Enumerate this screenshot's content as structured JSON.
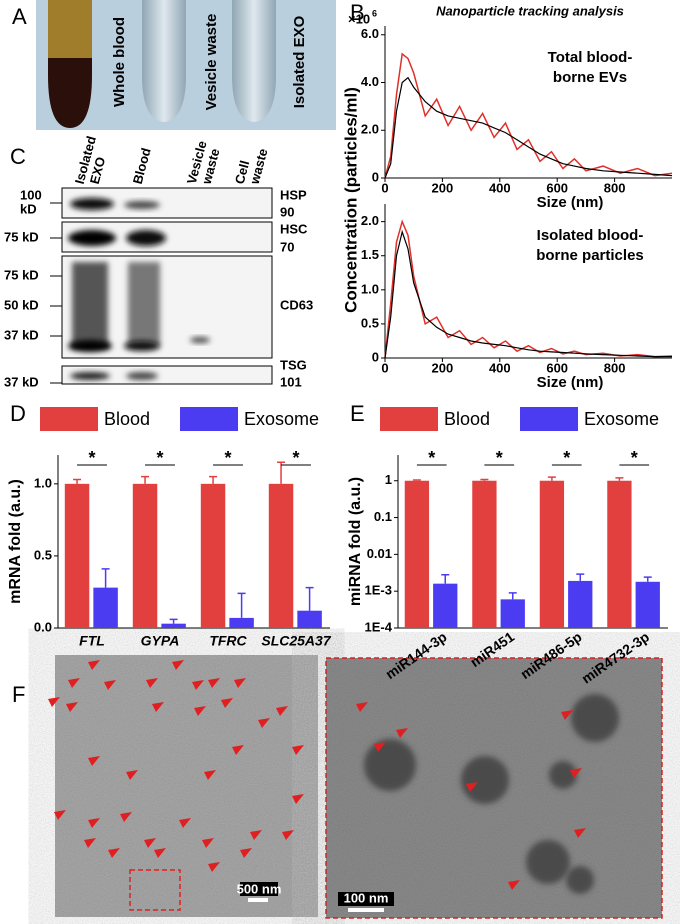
{
  "panel_a": {
    "letter": "A",
    "labels": [
      "Whole blood",
      "Vesicle waste",
      "Isolated EXO"
    ]
  },
  "panel_b": {
    "letter": "B",
    "title": "Nanoparticle tracking analysis",
    "y_label": "Concentration (particles/ml)",
    "multiplier": {
      "base": "×10",
      "exponent": "6"
    }
  },
  "panel_c": {
    "letter": "C",
    "columns": [
      [
        "Isolated",
        "EXO"
      ],
      [
        "Blood"
      ],
      [
        "Vesicle",
        "waste"
      ],
      [
        "Cell",
        "waste"
      ]
    ],
    "markers": [
      [
        "100",
        "kD"
      ],
      [
        "75 kD"
      ],
      [
        "75 kD"
      ],
      [
        "50 kD"
      ],
      [
        "37 kD"
      ],
      [
        "37 kD"
      ]
    ],
    "proteins": [
      [
        "HSP",
        "90"
      ],
      [
        "HSC",
        "70"
      ],
      [
        "CD63"
      ],
      [
        "TSG",
        "101"
      ]
    ]
  },
  "panel_f": {
    "letter": "F",
    "scale_bars": [
      "500 nm",
      "100 nm"
    ]
  },
  "chart_data": [
    {
      "type": "line",
      "annotation": [
        "Total blood-",
        "borne EVs"
      ],
      "x_label": "Size (nm)",
      "x": [
        0,
        20,
        40,
        60,
        80,
        100,
        140,
        180,
        220,
        260,
        300,
        340,
        380,
        420,
        460,
        500,
        540,
        580,
        620,
        660,
        700,
        760,
        820,
        880,
        940,
        1000
      ],
      "xlim": [
        0,
        1000
      ],
      "xticks": [
        0,
        200,
        400,
        600,
        800
      ],
      "ylim": [
        0,
        6.2
      ],
      "yticks": [
        0,
        {
          "value": 2,
          "label": "2.0"
        },
        {
          "value": 4,
          "label": "4.0"
        },
        {
          "value": 6,
          "label": "6.0"
        }
      ],
      "series": [
        {
          "color": "#e0302a",
          "values": [
            0,
            0.9,
            3.5,
            5.2,
            5.0,
            4.4,
            2.6,
            3.3,
            2.2,
            3.0,
            2.0,
            2.7,
            1.7,
            2.3,
            1.2,
            1.6,
            0.7,
            1.1,
            0.4,
            0.8,
            0.3,
            0.5,
            0.2,
            0.4,
            0.1,
            0.2
          ]
        },
        {
          "color": "#000000",
          "values": [
            0,
            0.6,
            2.8,
            4.0,
            4.2,
            3.8,
            3.2,
            2.8,
            2.6,
            2.5,
            2.4,
            2.3,
            2.1,
            1.9,
            1.6,
            1.3,
            1.0,
            0.8,
            0.6,
            0.5,
            0.4,
            0.3,
            0.25,
            0.2,
            0.15,
            0.1
          ]
        }
      ]
    },
    {
      "type": "line",
      "annotation": [
        "Isolated blood-",
        "borne particles"
      ],
      "x_label": "Size (nm)",
      "x": [
        0,
        20,
        40,
        60,
        80,
        100,
        140,
        180,
        220,
        260,
        300,
        340,
        380,
        420,
        460,
        500,
        540,
        580,
        620,
        660,
        700,
        760,
        820,
        880,
        940,
        1000
      ],
      "xlim": [
        0,
        1000
      ],
      "xticks": [
        0,
        200,
        400,
        600,
        800
      ],
      "ylim": [
        0,
        2.2
      ],
      "yticks": [
        0,
        0.5,
        {
          "value": 1,
          "label": "1.0"
        },
        1.5,
        {
          "value": 2,
          "label": "2.0"
        }
      ],
      "series": [
        {
          "color": "#e0302a",
          "values": [
            0,
            0.8,
            1.7,
            2.0,
            1.8,
            1.2,
            0.5,
            0.6,
            0.3,
            0.4,
            0.2,
            0.3,
            0.15,
            0.25,
            0.1,
            0.18,
            0.08,
            0.14,
            0.06,
            0.1,
            0.05,
            0.07,
            0.03,
            0.05,
            0.02,
            0.03
          ]
        },
        {
          "color": "#000000",
          "values": [
            0,
            0.6,
            1.5,
            1.85,
            1.6,
            1.1,
            0.6,
            0.45,
            0.35,
            0.3,
            0.25,
            0.22,
            0.2,
            0.18,
            0.15,
            0.12,
            0.1,
            0.09,
            0.08,
            0.07,
            0.06,
            0.05,
            0.04,
            0.03,
            0.02,
            0.02
          ]
        }
      ]
    },
    {
      "type": "bar",
      "letter": "D",
      "y_label": "mRNA fold (a.u.)",
      "categories": [
        "FTL",
        "GYPA",
        "TFRC",
        "SLC25A37"
      ],
      "series": [
        {
          "name": "Blood",
          "color": "#e2403f",
          "values": [
            1,
            1,
            1,
            1
          ],
          "errors": [
            0.03,
            0.05,
            0.05,
            0.15
          ]
        },
        {
          "name": "Exosome",
          "color": "#4b3cf2",
          "values": [
            0.28,
            0.03,
            0.07,
            0.12
          ],
          "errors": [
            0.13,
            0.03,
            0.17,
            0.16
          ]
        }
      ],
      "ylim": [
        0,
        1.2
      ],
      "yticks": [
        {
          "value": 0,
          "label": "0.0"
        },
        0.5,
        {
          "value": 1,
          "label": "1.0"
        }
      ],
      "significance": [
        "*",
        "*",
        "*",
        "*"
      ]
    },
    {
      "type": "bar",
      "letter": "E",
      "y_label": "miRNA fold (a.u.)",
      "log_scale": true,
      "categories": [
        "miR144-3p",
        "miR451",
        "miR486-5p",
        "miR4732-3p"
      ],
      "series": [
        {
          "name": "Blood",
          "color": "#e2403f",
          "values": [
            1,
            1,
            1,
            1
          ],
          "errors": [
            0.05,
            0.08,
            0.25,
            0.2
          ]
        },
        {
          "name": "Exosome",
          "color": "#4b3cf2",
          "values": [
            0.0016,
            0.0006,
            0.0019,
            0.0018
          ],
          "errors": [
            0.0012,
            0.0003,
            0.001,
            0.0006
          ]
        }
      ],
      "ylim": [
        0.0001,
        5
      ],
      "yticks": [
        {
          "value": 0.0001,
          "label": "1E-4"
        },
        {
          "value": 0.001,
          "label": "1E-3"
        },
        0.01,
        0.1,
        1
      ],
      "significance": [
        "*",
        "*",
        "*",
        "*"
      ]
    }
  ]
}
